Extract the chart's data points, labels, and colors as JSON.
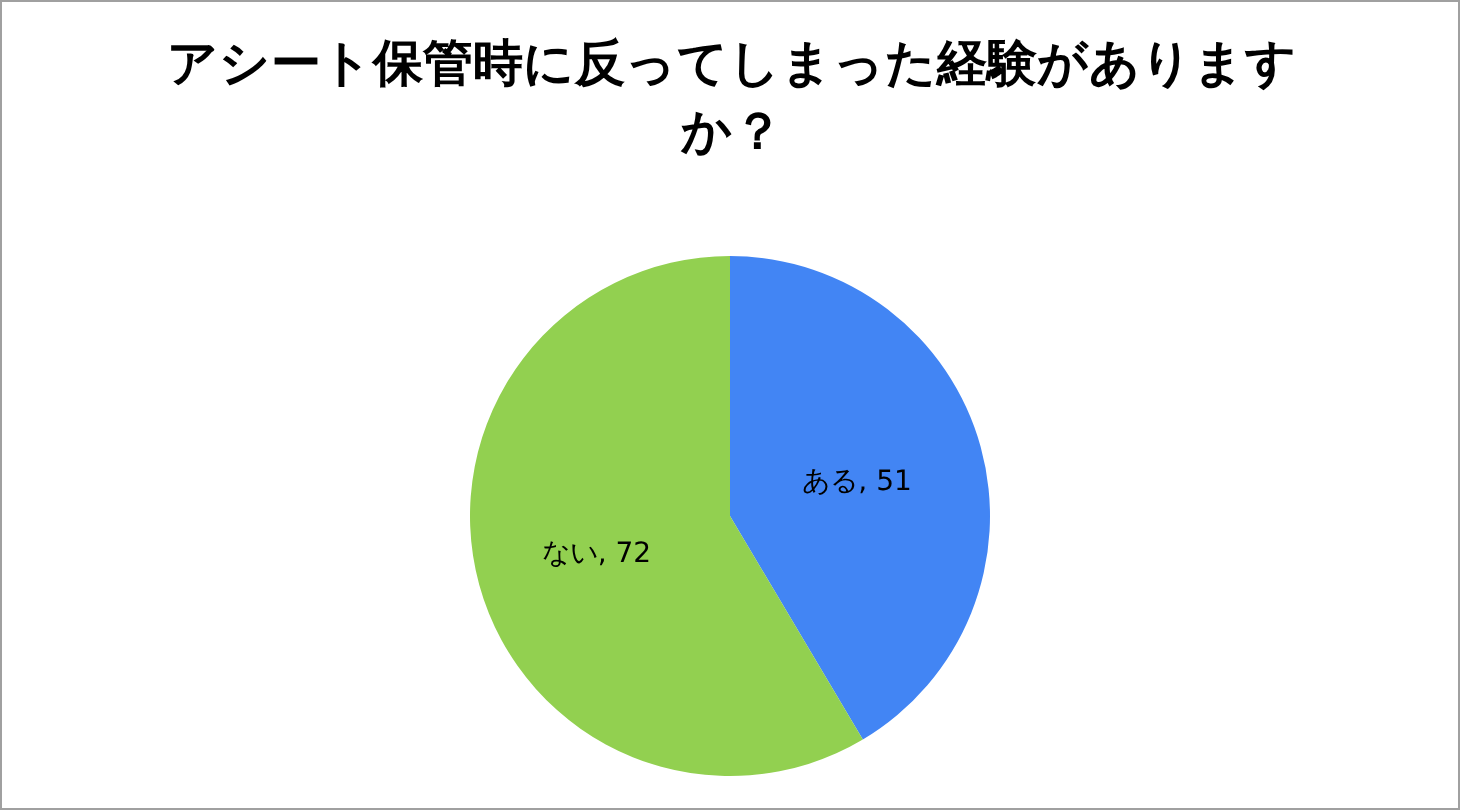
{
  "chart_data": {
    "type": "pie",
    "title": "アシート保管時に反ってしまった経験がありますか？",
    "categories": [
      "ある",
      "ない"
    ],
    "values": [
      51,
      72
    ],
    "value_labels": [
      ", 51",
      ", 72"
    ],
    "colors": [
      "#4285f4",
      "#92d050"
    ]
  }
}
